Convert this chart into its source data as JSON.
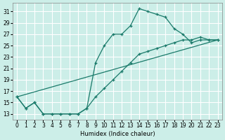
{
  "background_color": "#cceee8",
  "grid_color": "#ffffff",
  "line_color": "#1a7a6a",
  "xlabel": "Humidex (Indice chaleur)",
  "xlim": [
    -0.5,
    23.5
  ],
  "ylim": [
    12,
    32.5
  ],
  "yticks": [
    13,
    15,
    17,
    19,
    21,
    23,
    25,
    27,
    29,
    31
  ],
  "xticks": [
    0,
    1,
    2,
    3,
    4,
    5,
    6,
    7,
    8,
    9,
    10,
    11,
    12,
    13,
    14,
    15,
    16,
    17,
    18,
    19,
    20,
    21,
    22,
    23
  ],
  "line1_x": [
    0,
    1,
    2,
    3,
    4,
    5,
    6,
    7,
    8,
    9,
    10,
    11,
    12,
    13,
    14,
    15,
    16,
    17,
    18,
    19,
    20,
    21,
    22,
    23
  ],
  "line1_y": [
    16,
    14,
    15,
    13,
    13,
    13,
    13,
    13,
    14,
    22,
    25,
    27,
    27,
    28.5,
    31.5,
    31,
    30.5,
    30,
    28,
    27,
    25.5,
    26,
    26,
    26
  ],
  "line2_x": [
    0,
    1,
    2,
    3,
    4,
    5,
    6,
    7,
    8,
    9,
    10,
    11,
    12,
    13,
    14,
    15,
    16,
    17,
    18,
    19,
    20,
    21,
    22,
    23
  ],
  "line2_y": [
    16,
    14,
    15,
    13,
    13,
    13,
    13,
    13,
    14,
    16,
    17.5,
    19,
    20.5,
    22,
    23.5,
    24,
    24.5,
    25,
    25.5,
    26,
    26,
    26.5,
    26,
    26
  ],
  "line3_x": [
    0,
    23
  ],
  "line3_y": [
    16,
    26
  ]
}
